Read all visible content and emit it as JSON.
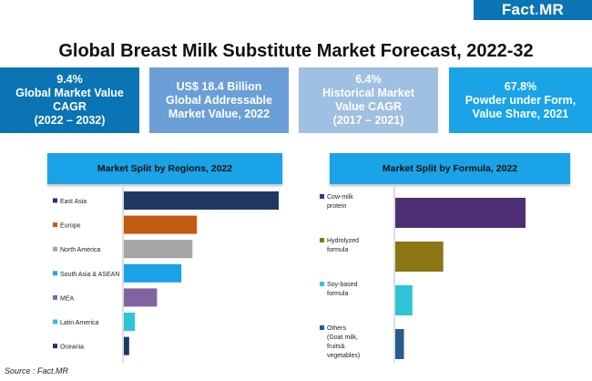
{
  "brand": {
    "logo_main": "Fact",
    "logo_dot": ".",
    "logo_suffix": "MR"
  },
  "title": "Global Breast Milk Substitute Market Forecast, 2022-32",
  "kpis": [
    {
      "line1": "9.4%",
      "line2": "Global Market Value",
      "line3": "CAGR",
      "line4": "(2022 – 2032)",
      "color": "#0a74b4"
    },
    {
      "line1": "US$ 18.4 Billion",
      "line2": "Global Addressable",
      "line3": "Market Value, 2022",
      "line4": "",
      "color": "#6a9fd8"
    },
    {
      "line1": "6.4%",
      "line2": "Historical Market",
      "line3": "Value CAGR",
      "line4": "(2017 – 2021)",
      "color": "#9fbfe3"
    },
    {
      "line1": "67.8%",
      "line2": "Powder under Form,",
      "line3": "Value Share, 2021",
      "line4": "",
      "color": "#1aa3e6"
    }
  ],
  "colors": {
    "panel_head": "#1aa3e6"
  },
  "chart_data": [
    {
      "type": "bar",
      "orientation": "horizontal",
      "title": "Market Split by Regions, 2022",
      "categories": [
        "East Asia",
        "Europe",
        "North America",
        "South Asia & ASEAN",
        "MEA",
        "Latin America",
        "Oceania"
      ],
      "values": [
        35,
        16.5,
        15.5,
        13,
        7.5,
        2.5,
        1.2
      ],
      "colors": [
        "#1f3864",
        "#c55a11",
        "#a5a5a5",
        "#1aa3e6",
        "#8064a2",
        "#2ec4d6",
        "#1f3864"
      ],
      "xlabel": "",
      "ylabel": "",
      "grid": false,
      "legend": "left"
    },
    {
      "type": "bar",
      "orientation": "horizontal",
      "title": "Market Split by Formula, 2022",
      "categories": [
        "Cow-milk protein",
        "Hydrolyzed formula",
        "Soy-based formula",
        "Others (Goat milk, fruits& vegetables)"
      ],
      "legend_lines": [
        [
          "Cow-milk",
          "protein"
        ],
        [
          "Hydrolyzed",
          "formula"
        ],
        [
          "Soy-based",
          "formula"
        ],
        [
          "Others",
          "(Goat milk,",
          "fruits&",
          "vegetables)"
        ]
      ],
      "values": [
        57,
        21,
        7.5,
        3.8
      ],
      "colors": [
        "#4e2f73",
        "#8b7514",
        "#2ec4d6",
        "#2a5c8a"
      ],
      "xlabel": "",
      "ylabel": "",
      "grid": false,
      "legend": "left"
    }
  ],
  "source": "Source : Fact.MR"
}
